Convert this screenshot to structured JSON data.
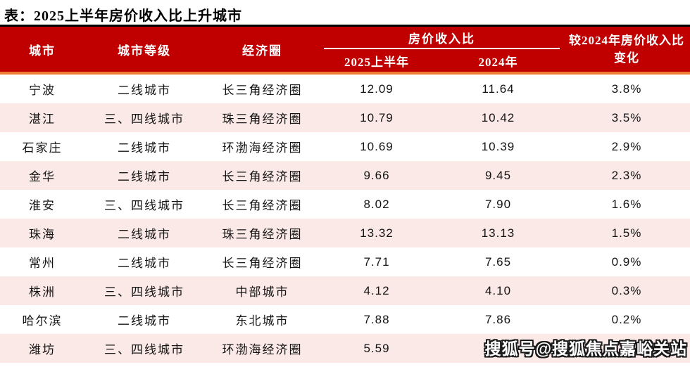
{
  "title": "表：2025上半年房价收入比上升城市",
  "table": {
    "col_city": "城市",
    "col_tier": "城市等级",
    "col_region": "经济圈",
    "group_header": "房价收入比",
    "sub_2025": "2025上半年",
    "sub_2024": "2024年",
    "col_change": "较2024年房价收入比变化",
    "rows": [
      {
        "city": "宁波",
        "tier": "二线城市",
        "region": "长三角经济圈",
        "ratio_2025h1": "12.09",
        "ratio_2024": "11.64",
        "change": "3.8%"
      },
      {
        "city": "湛江",
        "tier": "三、四线城市",
        "region": "珠三角经济圈",
        "ratio_2025h1": "10.79",
        "ratio_2024": "10.42",
        "change": "3.5%"
      },
      {
        "city": "石家庄",
        "tier": "二线城市",
        "region": "环渤海经济圈",
        "ratio_2025h1": "10.69",
        "ratio_2024": "10.39",
        "change": "2.9%"
      },
      {
        "city": "金华",
        "tier": "二线城市",
        "region": "长三角经济圈",
        "ratio_2025h1": "9.66",
        "ratio_2024": "9.45",
        "change": "2.3%"
      },
      {
        "city": "淮安",
        "tier": "三、四线城市",
        "region": "长三角经济圈",
        "ratio_2025h1": "8.02",
        "ratio_2024": "7.90",
        "change": "1.6%"
      },
      {
        "city": "珠海",
        "tier": "二线城市",
        "region": "珠三角经济圈",
        "ratio_2025h1": "13.32",
        "ratio_2024": "13.13",
        "change": "1.5%"
      },
      {
        "city": "常州",
        "tier": "二线城市",
        "region": "长三角经济圈",
        "ratio_2025h1": "7.71",
        "ratio_2024": "7.65",
        "change": "0.9%"
      },
      {
        "city": "株洲",
        "tier": "三、四线城市",
        "region": "中部城市",
        "ratio_2025h1": "4.12",
        "ratio_2024": "4.10",
        "change": "0.3%"
      },
      {
        "city": "哈尔滨",
        "tier": "二线城市",
        "region": "东北城市",
        "ratio_2025h1": "7.88",
        "ratio_2024": "7.86",
        "change": "0.2%"
      },
      {
        "city": "潍坊",
        "tier": "三、四线城市",
        "region": "环渤海经济圈",
        "ratio_2025h1": "5.59",
        "ratio_2024": "5.58",
        "change": "0.2%"
      }
    ]
  },
  "watermark": "搜狐号@搜狐焦点嘉峪关站",
  "colors": {
    "header_red": "#C00000",
    "accent_orange": "#ED7D31",
    "row_pink": "#FBE9E7",
    "header_text": "#FFFFFF",
    "body_text": "#141414"
  },
  "chart_data": {
    "type": "table",
    "title": "表：2025上半年房价收入比上升城市",
    "columns": [
      "城市",
      "城市等级",
      "经济圈",
      "房价收入比 2025上半年",
      "房价收入比 2024年",
      "较2024年房价收入比变化"
    ],
    "rows": [
      [
        "宁波",
        "二线城市",
        "长三角经济圈",
        12.09,
        11.64,
        "3.8%"
      ],
      [
        "湛江",
        "三、四线城市",
        "珠三角经济圈",
        10.79,
        10.42,
        "3.5%"
      ],
      [
        "石家庄",
        "二线城市",
        "环渤海经济圈",
        10.69,
        10.39,
        "2.9%"
      ],
      [
        "金华",
        "二线城市",
        "长三角经济圈",
        9.66,
        9.45,
        "2.3%"
      ],
      [
        "淮安",
        "三、四线城市",
        "长三角经济圈",
        8.02,
        7.9,
        "1.6%"
      ],
      [
        "珠海",
        "二线城市",
        "珠三角经济圈",
        13.32,
        13.13,
        "1.5%"
      ],
      [
        "常州",
        "二线城市",
        "长三角经济圈",
        7.71,
        7.65,
        "0.9%"
      ],
      [
        "株洲",
        "三、四线城市",
        "中部城市",
        4.12,
        4.1,
        "0.3%"
      ],
      [
        "哈尔滨",
        "二线城市",
        "东北城市",
        7.88,
        7.86,
        "0.2%"
      ],
      [
        "潍坊",
        "三、四线城市",
        "环渤海经济圈",
        5.59,
        5.58,
        "0.2%"
      ]
    ]
  }
}
